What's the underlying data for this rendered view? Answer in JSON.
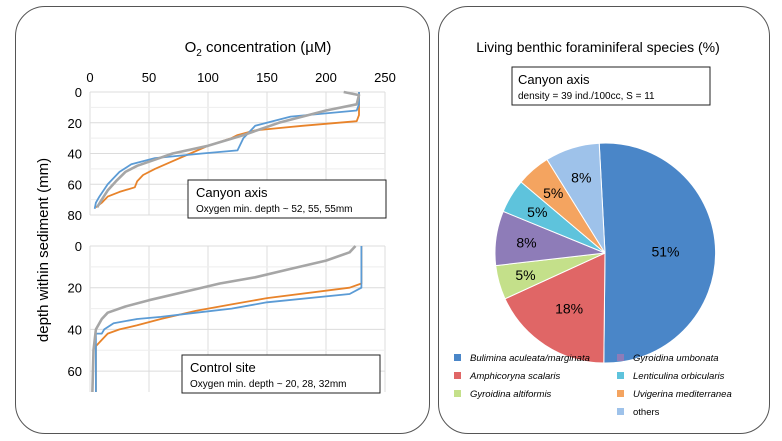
{
  "colors": {
    "orange": "#e8832a",
    "blue": "#5b9bd5",
    "gray": "#a6a6a6",
    "pie": [
      "#4a86c8",
      "#e06666",
      "#c4e08a",
      "#8e7cb8",
      "#5ec3dc",
      "#f4a460",
      "#9ec2ea"
    ]
  },
  "left": {
    "title_main": "O",
    "title_sub": "2",
    "title_rest": " concentration (µM)",
    "ylabel": "depth within sediment (mm)"
  },
  "right": {
    "title": "Living benthic foraminiferal species (%)",
    "info_title": "Canyon axis",
    "info_sub": "density = 39 ind./100cc, S = 11"
  },
  "chart_data": [
    {
      "type": "line",
      "name": "canyon-axis-profiles",
      "xlim": [
        0,
        250
      ],
      "ylim": [
        0,
        80
      ],
      "y_inverted": true,
      "x_ticks": [
        "0",
        "50",
        "100",
        "150",
        "200",
        "250"
      ],
      "y_ticks": [
        "0",
        "20",
        "40",
        "60",
        "80"
      ],
      "annotation_title": "Canyon axis",
      "annotation_sub": "Oxygen min. depth ~ 52, 55, 55mm",
      "series": [
        {
          "color": "orange",
          "points": [
            [
              228,
              0
            ],
            [
              228,
              15
            ],
            [
              226,
              19
            ],
            [
              180,
              22
            ],
            [
              140,
              25
            ],
            [
              125,
              28
            ],
            [
              120,
              30
            ],
            [
              100,
              35
            ],
            [
              85,
              40
            ],
            [
              70,
              45
            ],
            [
              55,
              50
            ],
            [
              45,
              54
            ],
            [
              40,
              58
            ],
            [
              38,
              62
            ],
            [
              25,
              65
            ],
            [
              15,
              68
            ],
            [
              10,
              72
            ],
            [
              5,
              75
            ]
          ]
        },
        {
          "color": "blue",
          "points": [
            [
              228,
              0
            ],
            [
              228,
              8
            ],
            [
              226,
              12
            ],
            [
              170,
              16
            ],
            [
              140,
              22
            ],
            [
              135,
              26
            ],
            [
              130,
              30
            ],
            [
              125,
              38
            ],
            [
              95,
              40
            ],
            [
              55,
              43
            ],
            [
              35,
              47
            ],
            [
              25,
              52
            ],
            [
              15,
              60
            ],
            [
              8,
              68
            ],
            [
              5,
              72
            ],
            [
              4,
              76
            ]
          ]
        },
        {
          "color": "gray",
          "points": [
            [
              215,
              0
            ],
            [
              228,
              2
            ],
            [
              226,
              8
            ],
            [
              200,
              12
            ],
            [
              160,
              20
            ],
            [
              130,
              28
            ],
            [
              100,
              35
            ],
            [
              70,
              40
            ],
            [
              55,
              44
            ],
            [
              40,
              48
            ],
            [
              30,
              52
            ],
            [
              22,
              58
            ],
            [
              15,
              64
            ],
            [
              10,
              70
            ],
            [
              6,
              75
            ]
          ]
        }
      ]
    },
    {
      "type": "line",
      "name": "control-site-profiles",
      "xlim": [
        0,
        250
      ],
      "ylim": [
        0,
        70
      ],
      "y_inverted": true,
      "y_ticks": [
        "0",
        "20",
        "40",
        "60"
      ],
      "annotation_title": "Control site",
      "annotation_sub": "Oxygen min. depth ~ 20, 28, 32mm",
      "series": [
        {
          "color": "orange",
          "points": [
            [
              230,
              0
            ],
            [
              230,
              18
            ],
            [
              220,
              20
            ],
            [
              150,
              25
            ],
            [
              120,
              28
            ],
            [
              90,
              31
            ],
            [
              60,
              35
            ],
            [
              40,
              38
            ],
            [
              25,
              40
            ],
            [
              15,
              42
            ],
            [
              10,
              45
            ],
            [
              5,
              48
            ],
            [
              5,
              70
            ]
          ]
        },
        {
          "color": "blue",
          "points": [
            [
              230,
              0
            ],
            [
              230,
              20
            ],
            [
              220,
              23
            ],
            [
              150,
              27
            ],
            [
              120,
              30
            ],
            [
              90,
              32
            ],
            [
              60,
              34
            ],
            [
              40,
              35
            ],
            [
              20,
              37
            ],
            [
              12,
              40
            ],
            [
              10,
              42
            ],
            [
              5,
              42
            ],
            [
              5,
              70
            ]
          ]
        },
        {
          "color": "gray",
          "points": [
            [
              225,
              0
            ],
            [
              220,
              3
            ],
            [
              200,
              7
            ],
            [
              170,
              11
            ],
            [
              140,
              15
            ],
            [
              110,
              18
            ],
            [
              80,
              22
            ],
            [
              50,
              26
            ],
            [
              30,
              29
            ],
            [
              15,
              32
            ],
            [
              10,
              35
            ],
            [
              5,
              40
            ],
            [
              3,
              50
            ],
            [
              2,
              70
            ]
          ]
        }
      ]
    },
    {
      "type": "pie",
      "name": "foraminiferal-species",
      "slices": [
        {
          "label": "Bulimina aculeata/marginata",
          "value": 51,
          "text": "51%"
        },
        {
          "label": "Amphicoryna scalaris",
          "value": 18,
          "text": "18%"
        },
        {
          "label": "Gyroidina altiformis",
          "value": 5,
          "text": "5%"
        },
        {
          "label": "Gyroidina umbonata",
          "value": 8,
          "text": "8%"
        },
        {
          "label": "Lenticulina orbicularis",
          "value": 5,
          "text": "5%"
        },
        {
          "label": "Uvigerina mediterranea",
          "value": 5,
          "text": "5%"
        },
        {
          "label": "others",
          "value": 8,
          "text": "8%"
        }
      ]
    }
  ]
}
